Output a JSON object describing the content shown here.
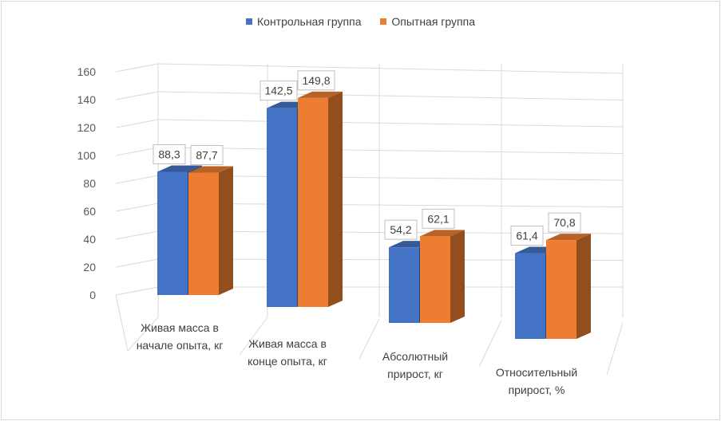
{
  "chart_data": {
    "type": "bar",
    "title": "",
    "xlabel": "",
    "ylabel": "",
    "ylim": [
      0,
      160
    ],
    "yticks": [
      0,
      20,
      40,
      60,
      80,
      100,
      120,
      140,
      160
    ],
    "grid": true,
    "legend_position": "top",
    "categories": [
      [
        "Живая масса в",
        "начале опыта, кг"
      ],
      [
        "Живая масса в",
        "конце опыта, кг"
      ],
      [
        "Абсолютный",
        "прирост, кг"
      ],
      [
        "Относительный",
        "прирост, %"
      ]
    ],
    "series": [
      {
        "name": "Контрольная группа",
        "color": "#4472C4",
        "values": [
          88.3,
          142.5,
          54.2,
          61.4
        ],
        "labels": [
          "88,3",
          "142,5",
          "54,2",
          "61,4"
        ]
      },
      {
        "name": "Опытная группа",
        "color": "#ED7D31",
        "values": [
          87.7,
          149.8,
          62.1,
          70.8
        ],
        "labels": [
          "87,7",
          "149,8",
          "62,1",
          "70,8"
        ]
      }
    ]
  }
}
